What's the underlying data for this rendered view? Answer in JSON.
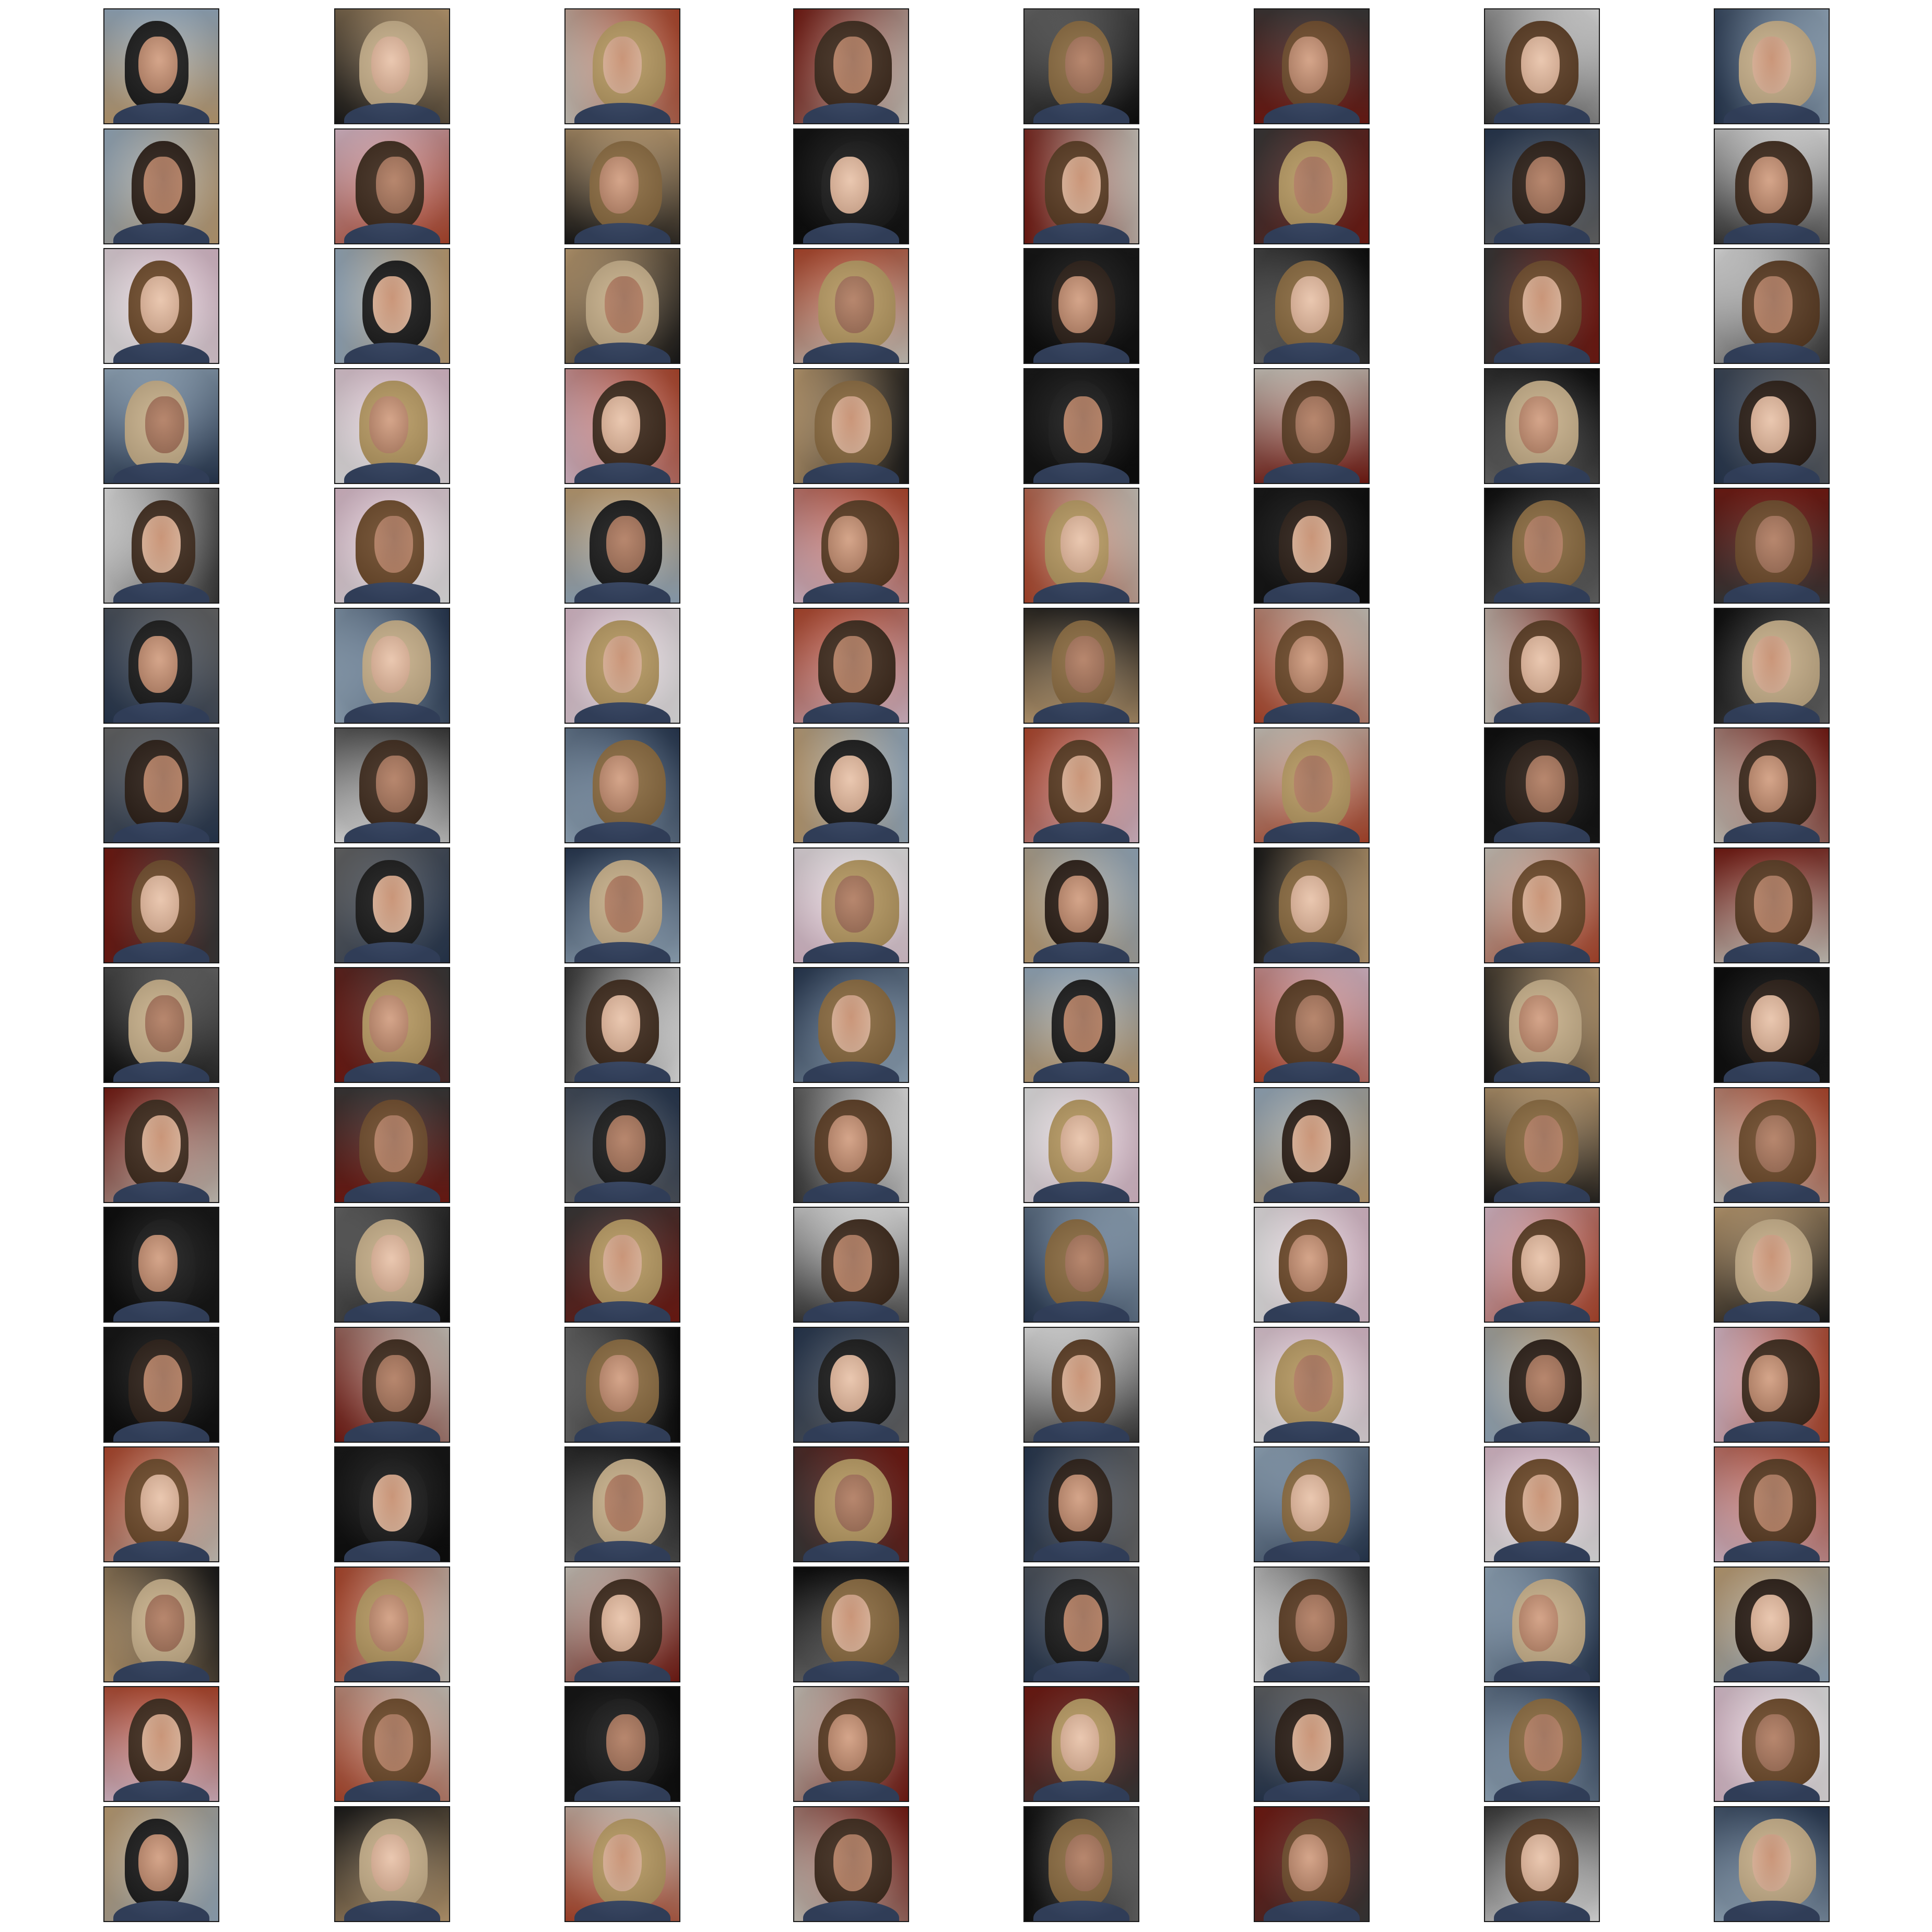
{
  "grid": {
    "rows": 16,
    "cols": 8,
    "tile_count": 128
  },
  "palette": {
    "backgrounds": [
      "#f2f2f2",
      "#1b1b1b",
      "#3c3c3c",
      "#c9a77a",
      "#7b1c14",
      "#9fb5c9",
      "#d8d2c8",
      "#2a3b55",
      "#b84a2e",
      "#6d6d6d",
      "#e6c6d6",
      "#0e0e0e"
    ],
    "hairs": [
      "#2b1e16",
      "#5a3b22",
      "#8a6a3f",
      "#b89a62",
      "#1a1a1a",
      "#3e2a1c",
      "#c8b08a",
      "#6e4a2a"
    ],
    "skins": [
      "#e0b59a",
      "#d19c7e",
      "#c48a6a",
      "#b07a5e",
      "#e8c2a8",
      "#9a6a52",
      "#d6a88c"
    ],
    "clothes": [
      "#141414",
      "#2a2a2a",
      "#5d4a3a",
      "#3a4a6a",
      "#6b6b6b"
    ]
  }
}
